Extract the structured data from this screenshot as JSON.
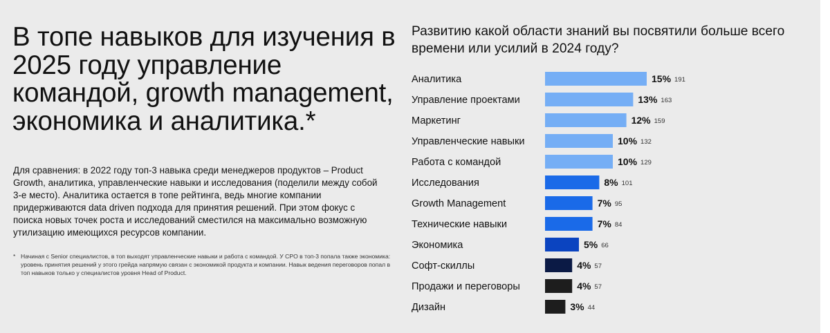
{
  "headline": "В топе навыков для изучения в 2025 году управление командой, growth management, экономика и аналитика.*",
  "body": "Для сравнения: в 2022 году топ-3 навыка среди менеджеров продуктов – Product Growth, аналитика, управленческие навыки и исследования (поделили между собой 3-е место). Аналитика остается в топе рейтинга, ведь многие компании придерживаются data driven подхода для принятия решений. При этом фокус с поиска новых точек роста и исследований сместился на максимально возможную утилизацию имеющихся ресурсов компании.",
  "footnote": {
    "marker": "*",
    "text": "Начиная с Senior специалистов, в топ выходят управленческие навыки и работа с командой. У CPO в топ-3 попала также экономика: уровень принятия решений у этого грейда напрямую связан с экономикой продукта и компании. Навык ведения переговоров попал в топ навыков только у специалистов уровня Head of Product."
  },
  "colors": {
    "panel_background": "#ebebeb",
    "text": "#111111",
    "bar_light_blue": "#75aef5",
    "bar_blue": "#1a6ae8",
    "bar_dark_blue": "#0b44c0",
    "bar_navy": "#0b1a45",
    "bar_black": "#1d1d1d"
  },
  "chart_data": {
    "type": "bar",
    "orientation": "horizontal",
    "title": "Развитию какой области знаний вы посвятили больше всего времени или усилий в 2024 году?",
    "categories": [
      "Аналитика",
      "Управление проектами",
      "Маркетинг",
      "Управленческие навыки",
      "Работа с командой",
      "Исследования",
      "Growth Management",
      "Технические навыки",
      "Экономика",
      "Софт-скиллы",
      "Продажи и переговоры",
      "Дизайн"
    ],
    "values": [
      15,
      13,
      12,
      10,
      10,
      8,
      7,
      7,
      5,
      4,
      4,
      3
    ],
    "value_labels": [
      "15%",
      "13%",
      "12%",
      "10%",
      "10%",
      "8%",
      "7%",
      "7%",
      "5%",
      "4%",
      "4%",
      "3%"
    ],
    "counts": [
      191,
      163,
      159,
      132,
      129,
      101,
      95,
      84,
      66,
      57,
      57,
      44
    ],
    "bar_colors": [
      "#75aef5",
      "#75aef5",
      "#75aef5",
      "#75aef5",
      "#75aef5",
      "#1a6ae8",
      "#1a6ae8",
      "#1a6ae8",
      "#0b44c0",
      "#0b1a45",
      "#1d1d1d",
      "#1d1d1d"
    ],
    "xlabel": "",
    "ylabel": "",
    "grid": false,
    "legend": "none"
  }
}
